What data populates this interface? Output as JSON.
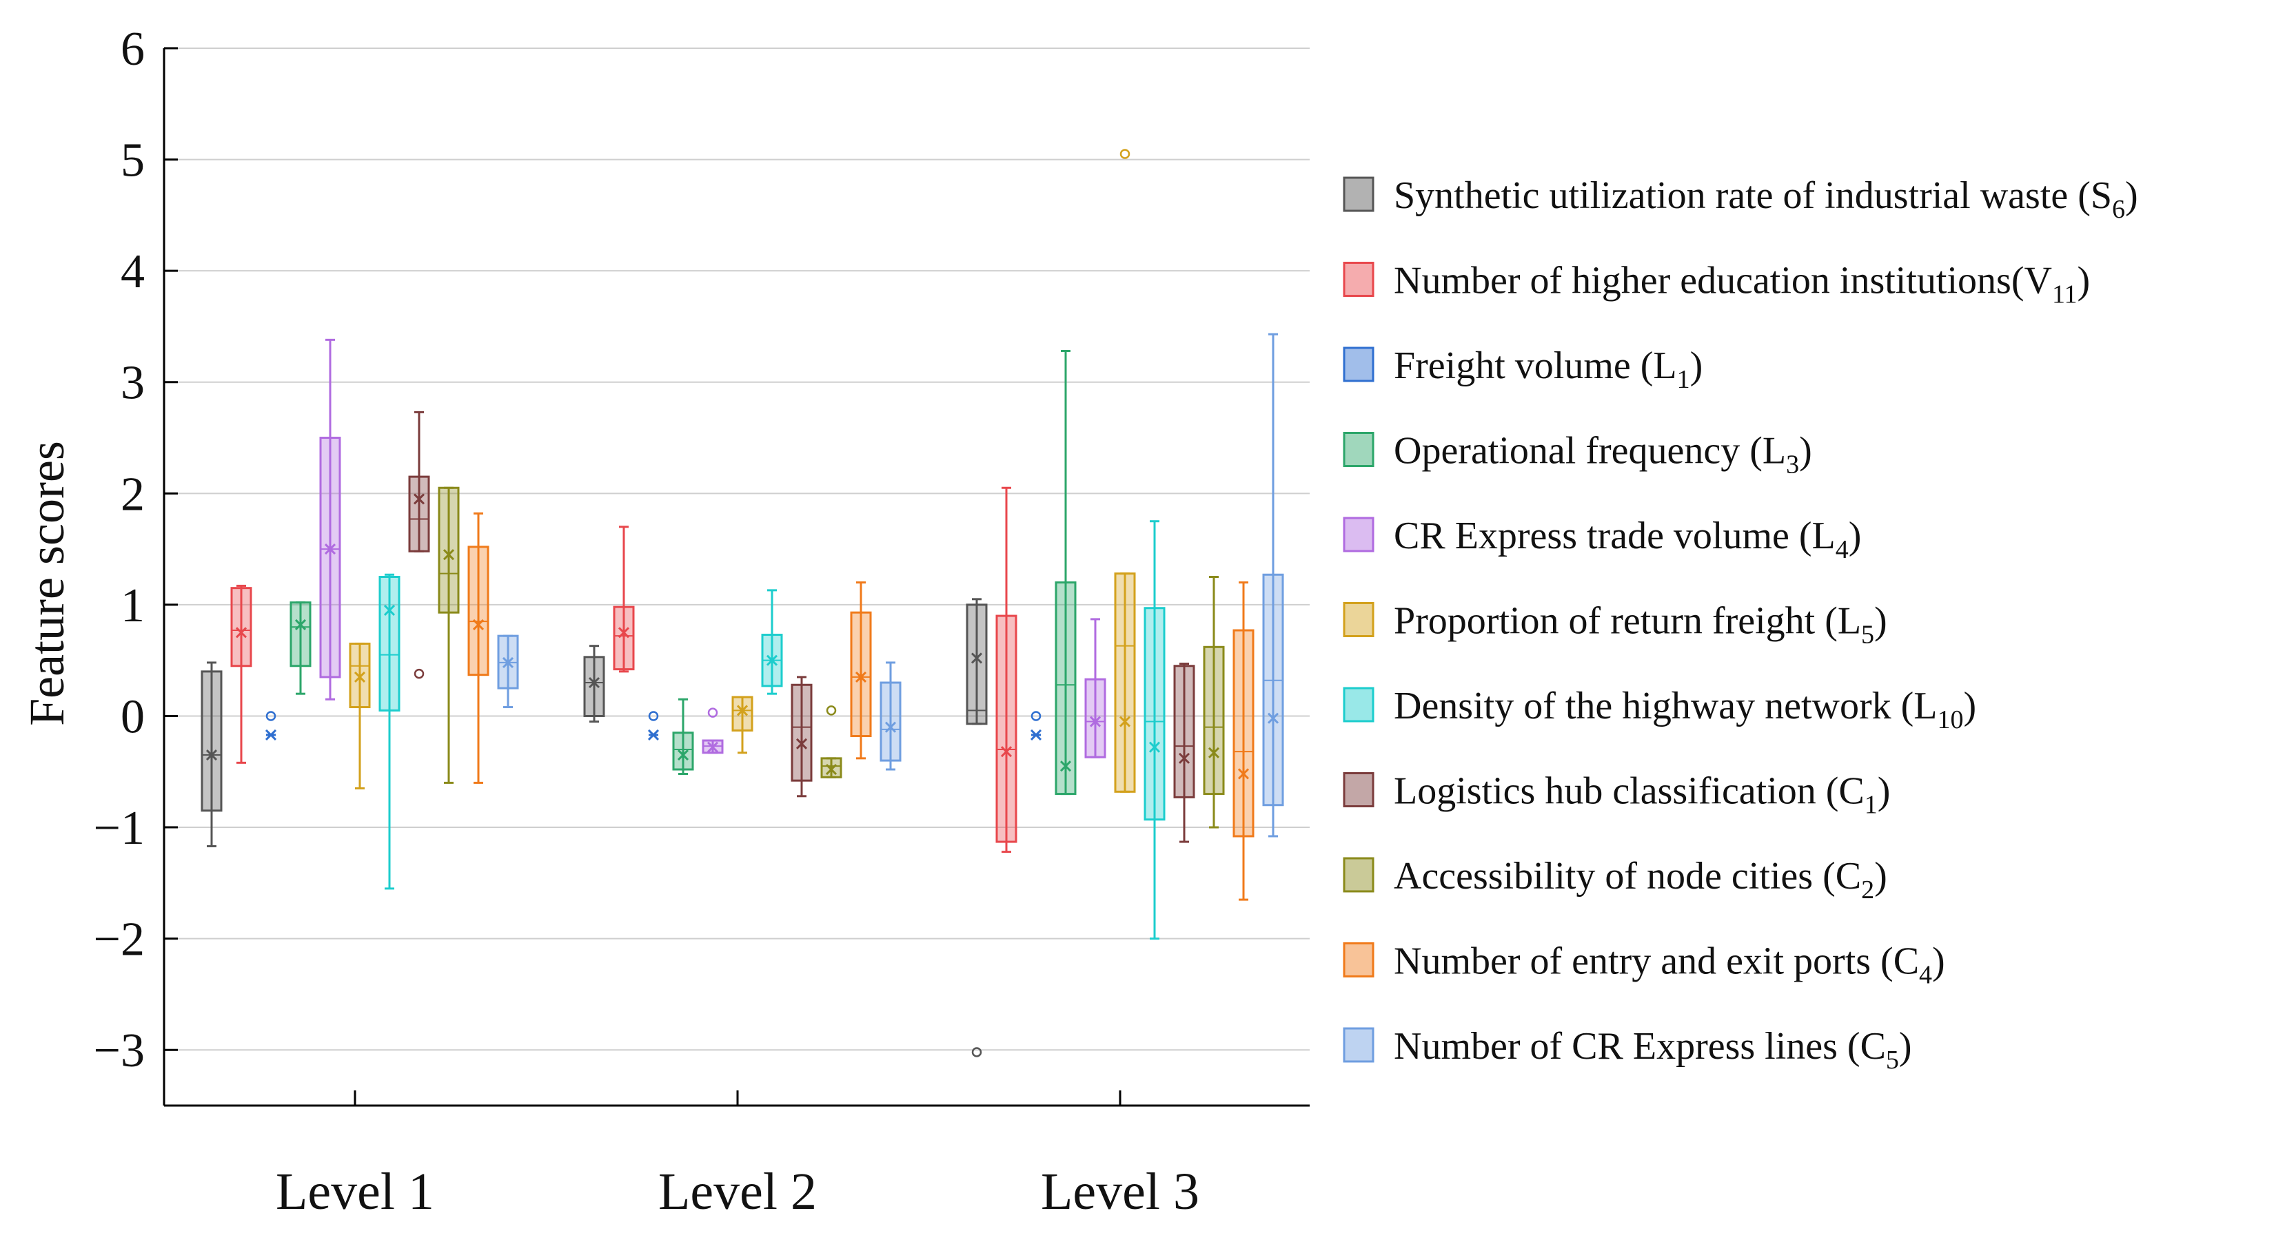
{
  "chart_data": {
    "type": "box",
    "title": "",
    "xlabel": "",
    "ylabel": "Feature scores",
    "ylim": [
      -3.5,
      6
    ],
    "yticks": [
      {
        "value": -3,
        "label": "−3"
      },
      {
        "value": -2,
        "label": "−2"
      },
      {
        "value": -1,
        "label": "−1"
      },
      {
        "value": 0,
        "label": "0"
      },
      {
        "value": 1,
        "label": "1"
      },
      {
        "value": 2,
        "label": "2"
      },
      {
        "value": 3,
        "label": "3"
      },
      {
        "value": 4,
        "label": "4"
      },
      {
        "value": 5,
        "label": "5"
      },
      {
        "value": 6,
        "label": "6"
      }
    ],
    "grid": true,
    "legend_position": "right",
    "categories": [
      "Level 1",
      "Level 2",
      "Level 3"
    ],
    "series": [
      {
        "name": "Synthetic utilization rate of industrial waste",
        "sub": "6",
        "sym": "S",
        "color": "#555555",
        "boxes": [
          {
            "min": -1.17,
            "q1": -0.85,
            "median": -0.35,
            "mean": -0.35,
            "q3": 0.4,
            "max": 0.48,
            "outliers": []
          },
          {
            "min": -0.05,
            "q1": 0.0,
            "median": 0.3,
            "mean": 0.3,
            "q3": 0.53,
            "max": 0.63,
            "outliers": []
          },
          {
            "min": -0.07,
            "q1": -0.07,
            "median": 0.05,
            "mean": 0.52,
            "q3": 1.0,
            "max": 1.05,
            "outliers": [
              -3.02
            ]
          }
        ]
      },
      {
        "name": "Number of higher education institutions",
        "sub": "11",
        "sym": "V",
        "color": "#e8474c",
        "nospace": true,
        "boxes": [
          {
            "min": -0.42,
            "q1": 0.45,
            "median": 0.77,
            "mean": 0.75,
            "q3": 1.15,
            "max": 1.17,
            "outliers": []
          },
          {
            "min": 0.4,
            "q1": 0.42,
            "median": 0.72,
            "mean": 0.75,
            "q3": 0.98,
            "max": 1.7,
            "outliers": []
          },
          {
            "min": -1.22,
            "q1": -1.13,
            "median": -0.3,
            "mean": -0.32,
            "q3": 0.9,
            "max": 2.05,
            "outliers": []
          }
        ]
      },
      {
        "name": "Freight volume",
        "sub": "1",
        "sym": "L",
        "color": "#2f6fd0",
        "boxes": [
          {
            "min": -0.17,
            "q1": -0.17,
            "median": -0.17,
            "mean": -0.17,
            "q3": -0.17,
            "max": -0.17,
            "outliers": [
              0.0
            ]
          },
          {
            "min": -0.17,
            "q1": -0.17,
            "median": -0.17,
            "mean": -0.17,
            "q3": -0.17,
            "max": -0.17,
            "outliers": [
              0.0
            ]
          },
          {
            "min": -0.17,
            "q1": -0.17,
            "median": -0.17,
            "mean": -0.17,
            "q3": -0.17,
            "max": -0.17,
            "outliers": [
              0.0
            ]
          }
        ]
      },
      {
        "name": "Operational frequency",
        "sub": "3",
        "sym": "L",
        "color": "#2ca66a",
        "boxes": [
          {
            "min": 0.2,
            "q1": 0.45,
            "median": 0.8,
            "mean": 0.82,
            "q3": 1.02,
            "max": 1.02,
            "outliers": []
          },
          {
            "min": -0.52,
            "q1": -0.48,
            "median": -0.3,
            "mean": -0.35,
            "q3": -0.15,
            "max": 0.15,
            "outliers": []
          },
          {
            "min": -0.7,
            "q1": -0.7,
            "median": 0.28,
            "mean": -0.45,
            "q3": 1.2,
            "max": 3.28,
            "outliers": []
          }
        ]
      },
      {
        "name": "CR Express trade volume",
        "sub": "4",
        "sym": "L",
        "color": "#b06be0",
        "boxes": [
          {
            "min": 0.15,
            "q1": 0.35,
            "median": 1.5,
            "mean": 1.5,
            "q3": 2.5,
            "max": 3.38,
            "outliers": []
          },
          {
            "min": -0.33,
            "q1": -0.33,
            "median": -0.27,
            "mean": -0.28,
            "q3": -0.22,
            "max": -0.22,
            "outliers": [
              0.03
            ]
          },
          {
            "min": -0.37,
            "q1": -0.37,
            "median": -0.05,
            "mean": -0.05,
            "q3": 0.33,
            "max": 0.87,
            "outliers": []
          }
        ]
      },
      {
        "name": "Proportion of return freight",
        "sub": "5",
        "sym": "L",
        "color": "#d3a11c",
        "boxes": [
          {
            "min": -0.65,
            "q1": 0.08,
            "median": 0.45,
            "mean": 0.35,
            "q3": 0.65,
            "max": 0.65,
            "outliers": []
          },
          {
            "min": -0.33,
            "q1": -0.13,
            "median": 0.05,
            "mean": 0.05,
            "q3": 0.17,
            "max": 0.17,
            "outliers": []
          },
          {
            "min": -0.68,
            "q1": -0.68,
            "median": 0.63,
            "mean": -0.05,
            "q3": 1.28,
            "max": 1.28,
            "outliers": [
              5.05
            ]
          }
        ]
      },
      {
        "name": "Density of the highway network",
        "sub": "10",
        "sym": "L",
        "color": "#1ccdcd",
        "boxes": [
          {
            "min": -1.55,
            "q1": 0.05,
            "median": 0.55,
            "mean": 0.95,
            "q3": 1.25,
            "max": 1.27,
            "outliers": []
          },
          {
            "min": 0.2,
            "q1": 0.27,
            "median": 0.5,
            "mean": 0.5,
            "q3": 0.73,
            "max": 1.13,
            "outliers": []
          },
          {
            "min": -2.0,
            "q1": -0.93,
            "median": -0.05,
            "mean": -0.28,
            "q3": 0.97,
            "max": 1.75,
            "outliers": []
          }
        ]
      },
      {
        "name": "Logistics hub classification",
        "sub": "1",
        "sym": "C",
        "color": "#7b3c3c",
        "boxes": [
          {
            "min": 1.48,
            "q1": 1.48,
            "median": 1.77,
            "mean": 1.95,
            "q3": 2.15,
            "max": 2.73,
            "outliers": [
              0.38
            ]
          },
          {
            "min": -0.72,
            "q1": -0.58,
            "median": -0.1,
            "mean": -0.25,
            "q3": 0.28,
            "max": 0.35,
            "outliers": []
          },
          {
            "min": -1.13,
            "q1": -0.73,
            "median": -0.27,
            "mean": -0.38,
            "q3": 0.45,
            "max": 0.47,
            "outliers": []
          }
        ]
      },
      {
        "name": "Accessibility of node cities",
        "sub": "2",
        "sym": "C",
        "color": "#8a8a1a",
        "boxes": [
          {
            "min": -0.6,
            "q1": 0.93,
            "median": 1.28,
            "mean": 1.45,
            "q3": 2.05,
            "max": 2.05,
            "outliers": []
          },
          {
            "min": -0.55,
            "q1": -0.55,
            "median": -0.45,
            "mean": -0.48,
            "q3": -0.38,
            "max": -0.38,
            "outliers": [
              0.05
            ]
          },
          {
            "min": -1.0,
            "q1": -0.7,
            "median": -0.1,
            "mean": -0.33,
            "q3": 0.62,
            "max": 1.25,
            "outliers": []
          }
        ]
      },
      {
        "name": "Number of entry and exit ports",
        "sub": "4",
        "sym": "C",
        "color": "#f07a1a",
        "boxes": [
          {
            "min": -0.6,
            "q1": 0.37,
            "median": 0.85,
            "mean": 0.82,
            "q3": 1.52,
            "max": 1.82,
            "outliers": []
          },
          {
            "min": -0.38,
            "q1": -0.18,
            "median": 0.35,
            "mean": 0.35,
            "q3": 0.93,
            "max": 1.2,
            "outliers": []
          },
          {
            "min": -1.65,
            "q1": -1.08,
            "median": -0.32,
            "mean": -0.52,
            "q3": 0.77,
            "max": 1.2,
            "outliers": []
          }
        ]
      },
      {
        "name": "Number of CR Express lines",
        "sub": "5",
        "sym": "C",
        "color": "#6f9ee0",
        "boxes": [
          {
            "min": 0.08,
            "q1": 0.25,
            "median": 0.48,
            "mean": 0.48,
            "q3": 0.72,
            "max": 0.72,
            "outliers": []
          },
          {
            "min": -0.48,
            "q1": -0.4,
            "median": -0.12,
            "mean": -0.1,
            "q3": 0.3,
            "max": 0.48,
            "outliers": []
          },
          {
            "min": -1.08,
            "q1": -0.8,
            "median": 0.32,
            "mean": -0.02,
            "q3": 1.27,
            "max": 3.43,
            "outliers": []
          }
        ]
      }
    ]
  }
}
